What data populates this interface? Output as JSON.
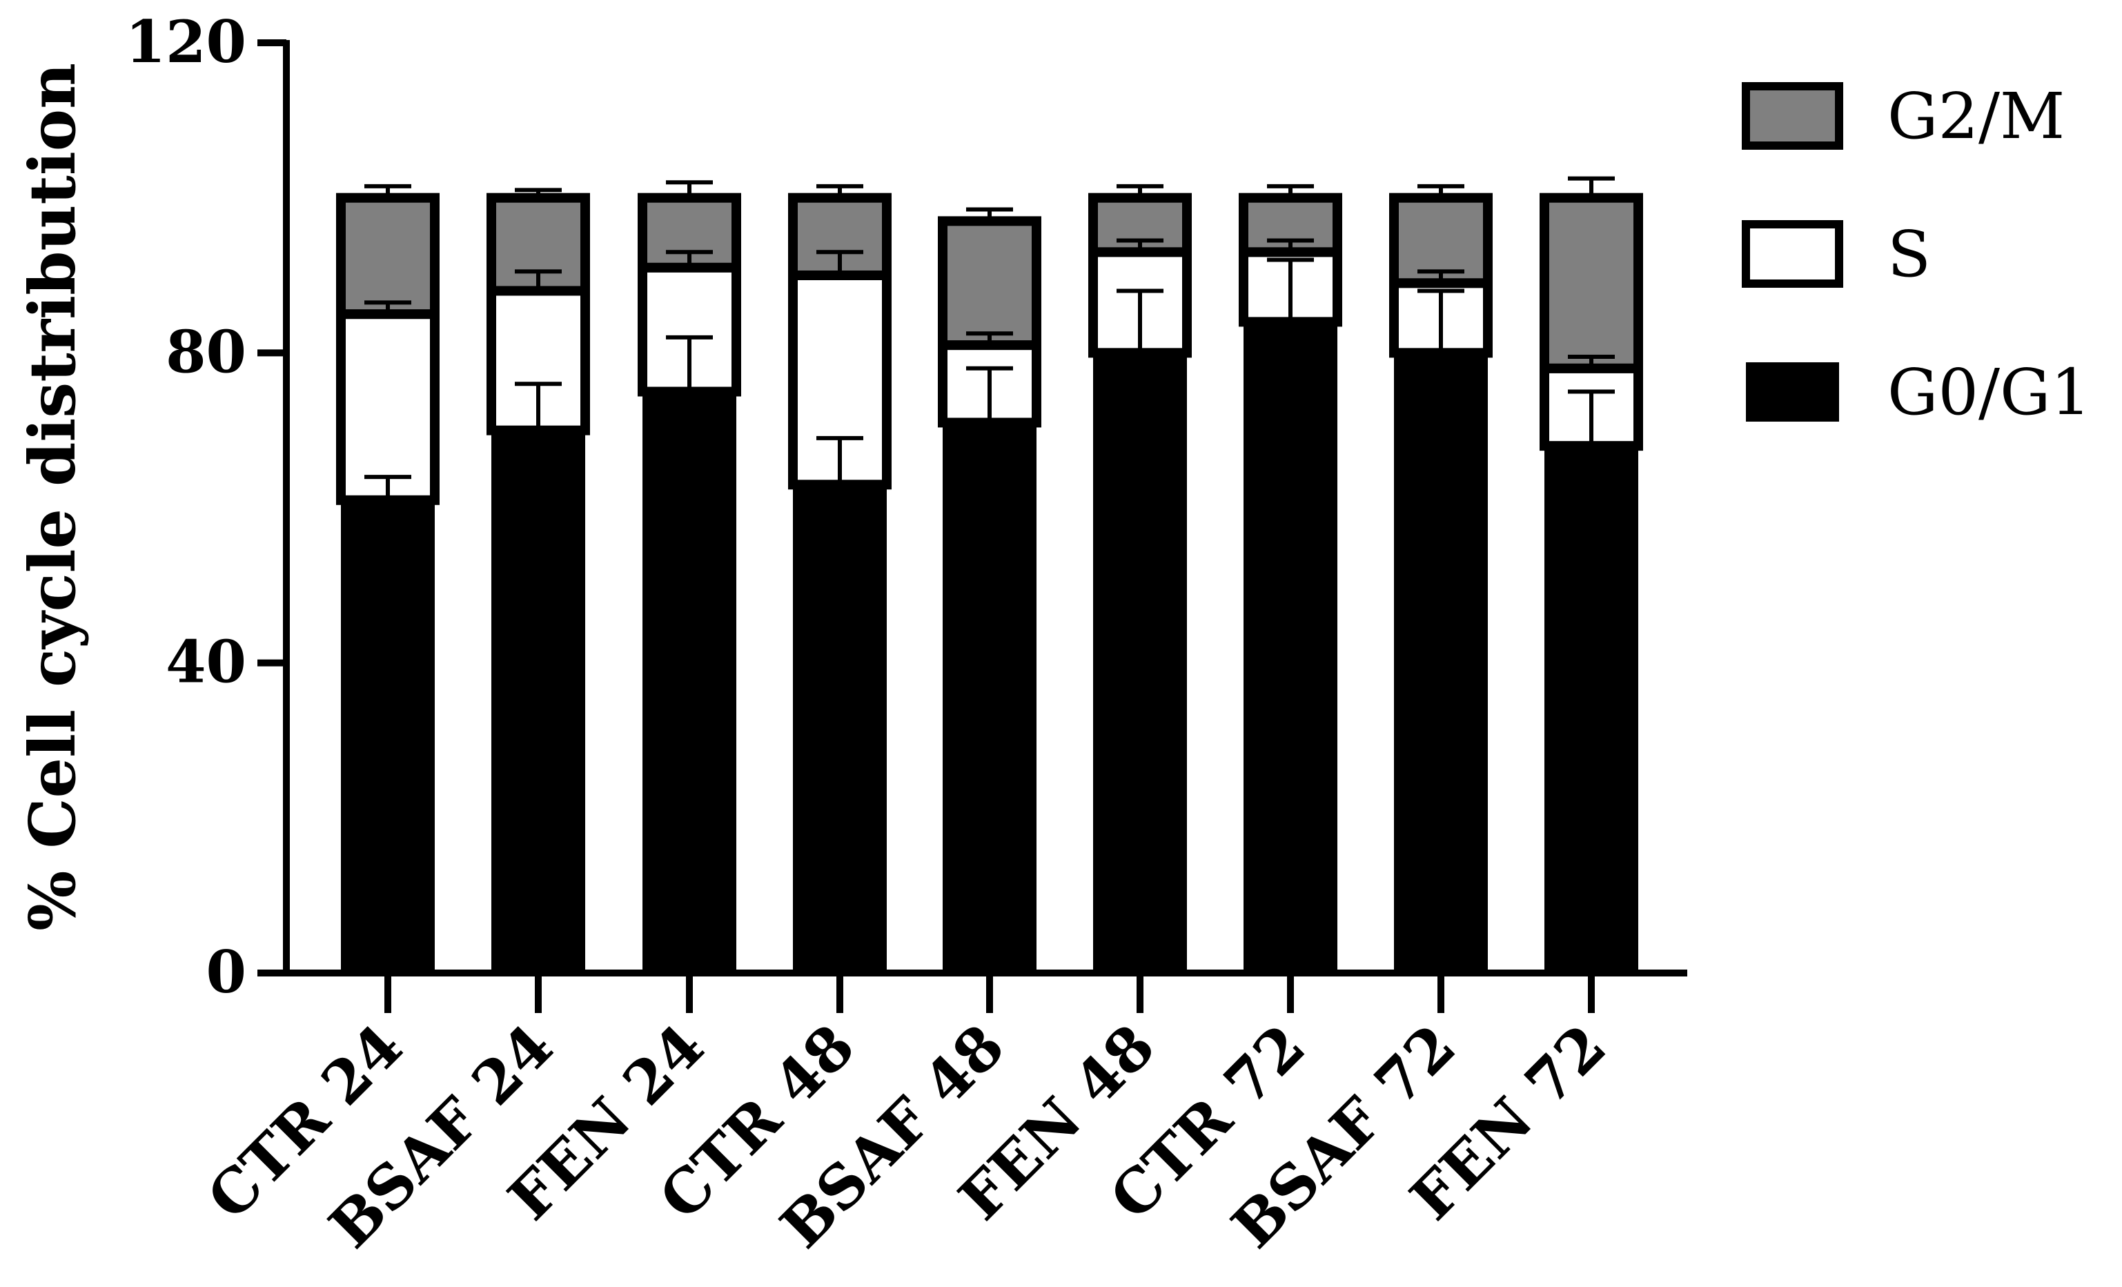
{
  "chart_data": {
    "type": "bar",
    "stacked": true,
    "title": "",
    "xlabel": "",
    "ylabel": "% Cell cycle distribution",
    "ylim": [
      0,
      120
    ],
    "yticks": [
      "0",
      "40",
      "80",
      "120"
    ],
    "grid": false,
    "legend_position": "right",
    "categories": [
      "CTR 24",
      "BSAF 24",
      "FEN 24",
      "CTR 48",
      "BSAF 48",
      "FEN 48",
      "CTR 72",
      "BSAF 72",
      "FEN 72"
    ],
    "series": [
      {
        "name": "G0/G1",
        "color": "#000000",
        "values": [
          61,
          70,
          75,
          63,
          71,
          80,
          84,
          80,
          68
        ],
        "error": [
          3,
          6,
          7,
          6,
          7,
          8,
          8,
          8,
          7
        ]
      },
      {
        "name": "S",
        "color": "#ffffff",
        "values": [
          24,
          18,
          16,
          27,
          10,
          13,
          9,
          9,
          10
        ],
        "error": [
          1.5,
          2.5,
          2,
          3,
          1.5,
          1.5,
          1.5,
          1.5,
          1.5
        ]
      },
      {
        "name": "G2/M",
        "color": "#808080",
        "values": [
          15,
          12,
          9,
          10,
          16,
          7,
          7,
          11,
          22
        ],
        "error": [
          1.5,
          1,
          2,
          1.5,
          1.5,
          1.5,
          1.5,
          1.5,
          2.5
        ]
      }
    ],
    "legend_order": [
      "G2/M",
      "S",
      "G0/G1"
    ]
  }
}
